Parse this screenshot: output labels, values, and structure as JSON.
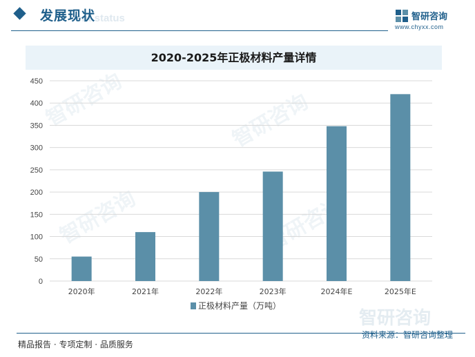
{
  "header": {
    "section_title": "发展现状",
    "section_subtitle": "ent status",
    "brand_name": "智研咨询",
    "brand_url": "www.chyxx.com"
  },
  "chart_data": {
    "type": "bar",
    "title": "2020-2025年正极材料产量详情",
    "categories": [
      "2020年",
      "2021年",
      "2022年",
      "2023年",
      "2024年E",
      "2025年E"
    ],
    "series": [
      {
        "name": "正极材料产量（万吨）",
        "values": [
          55,
          110,
          200,
          246,
          348,
          420
        ]
      }
    ],
    "yticks": [
      0,
      50,
      100,
      150,
      200,
      250,
      300,
      350,
      400,
      450
    ],
    "ylim": [
      0,
      450
    ],
    "xlabel": "",
    "ylabel": "",
    "grid": true,
    "legend_position": "bottom",
    "bar_color": "#5b8fa8"
  },
  "footer": {
    "left_text": "精品报告 · 专项定制 · 品质服务",
    "source_text": "资料来源：智研咨询整理"
  },
  "watermark": "智研咨询"
}
